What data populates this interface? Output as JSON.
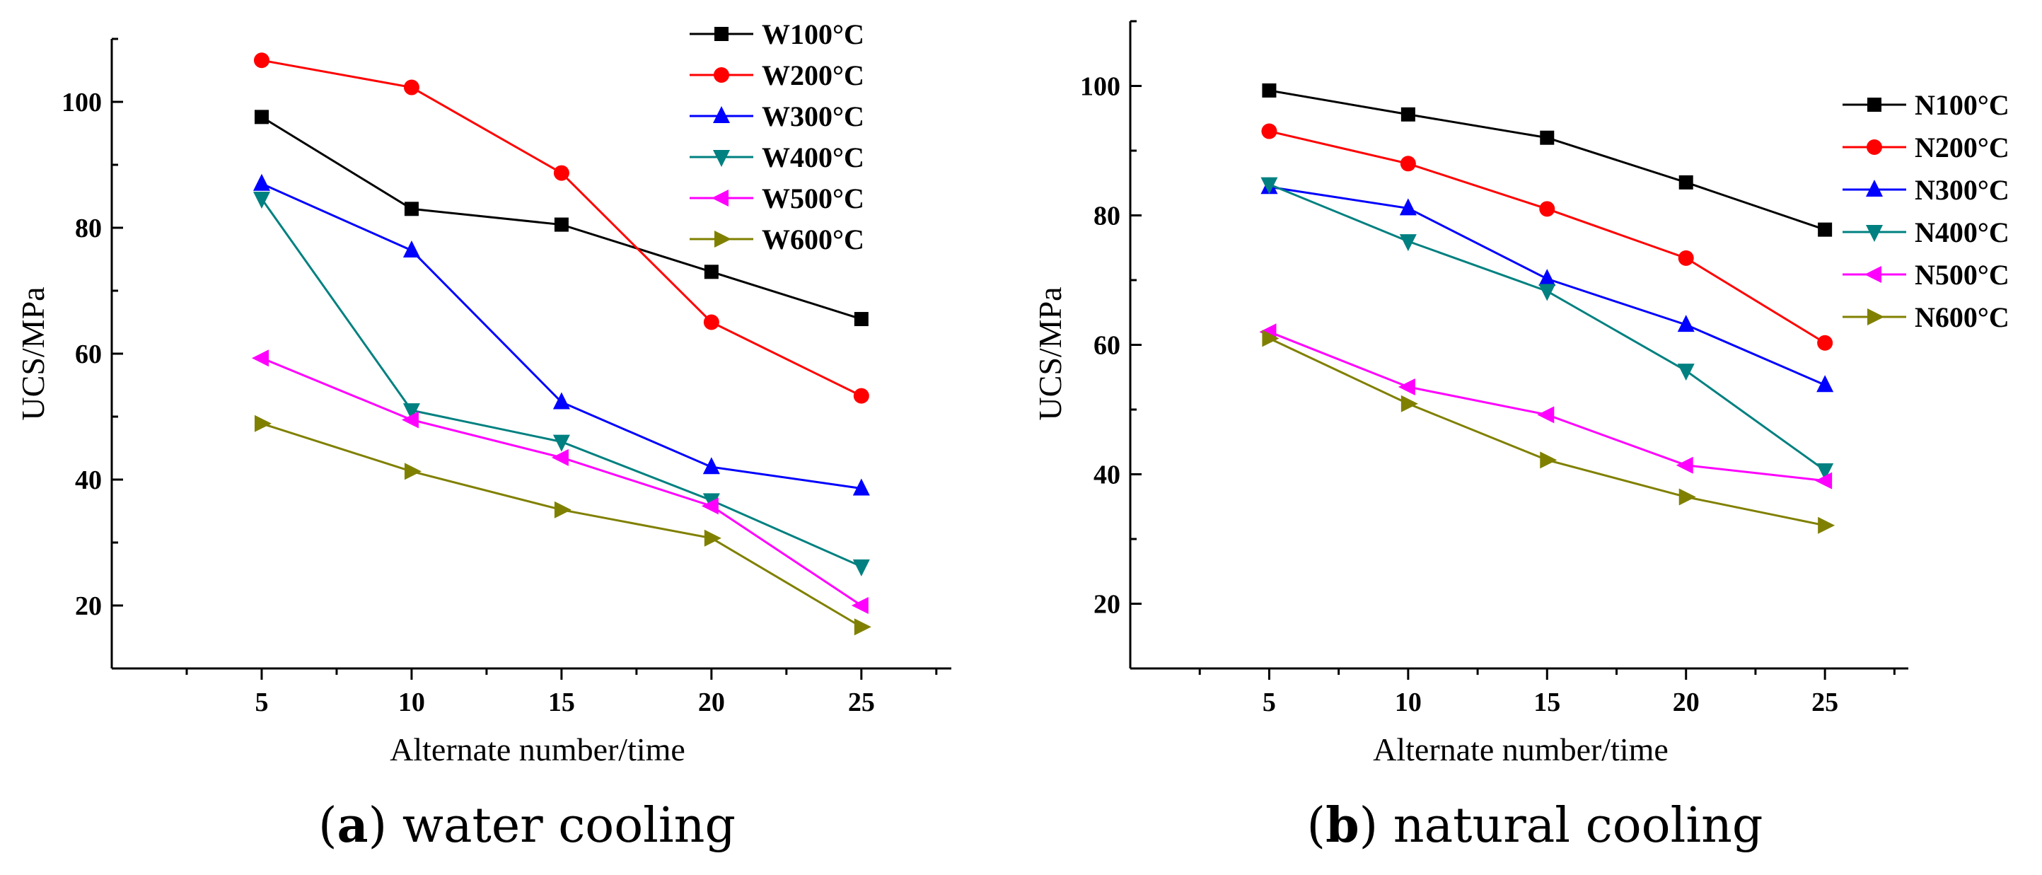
{
  "chart_data": [
    {
      "type": "line",
      "caption": {
        "letter": "a",
        "text": "water cooling"
      },
      "xlabel": "Alternate number/time",
      "ylabel": "UCS/MPa",
      "xlim": [
        0,
        28
      ],
      "ylim": [
        10,
        110
      ],
      "xticks": [
        5,
        10,
        15,
        20,
        25
      ],
      "yticks": [
        20,
        40,
        60,
        80,
        100
      ],
      "x": [
        5,
        10,
        15,
        20,
        25
      ],
      "legend_position": "top-right",
      "series": [
        {
          "name": "W100°C",
          "marker": "square",
          "color": "#000000",
          "values": [
            97.6,
            83.0,
            80.5,
            73.0,
            65.5
          ]
        },
        {
          "name": "W200°C",
          "marker": "circle",
          "color": "#ff0000",
          "values": [
            106.6,
            102.3,
            88.7,
            65.0,
            53.3
          ]
        },
        {
          "name": "W300°C",
          "marker": "triangle-up",
          "color": "#0000ff",
          "values": [
            87.0,
            76.4,
            52.3,
            42.0,
            38.6
          ]
        },
        {
          "name": "W400°C",
          "marker": "triangle-down",
          "color": "#008080",
          "values": [
            84.6,
            51.0,
            46.0,
            36.7,
            26.2
          ]
        },
        {
          "name": "W500°C",
          "marker": "triangle-left",
          "color": "#ff00ff",
          "values": [
            59.3,
            49.5,
            43.5,
            35.8,
            20.0
          ]
        },
        {
          "name": "W600°C",
          "marker": "triangle-right",
          "color": "#808000",
          "values": [
            48.9,
            41.3,
            35.2,
            30.7,
            16.6
          ]
        }
      ]
    },
    {
      "type": "line",
      "caption": {
        "letter": "b",
        "text": "natural cooling"
      },
      "xlabel": "Alternate number/time",
      "ylabel": "UCS/MPa",
      "xlim": [
        0,
        28
      ],
      "ylim": [
        10,
        110
      ],
      "xticks": [
        5,
        10,
        15,
        20,
        25
      ],
      "yticks": [
        20,
        40,
        60,
        80,
        100
      ],
      "x": [
        5,
        10,
        15,
        20,
        25
      ],
      "legend_position": "top-right",
      "series": [
        {
          "name": "N100°C",
          "marker": "square",
          "color": "#000000",
          "values": [
            99.3,
            95.6,
            92.0,
            85.1,
            77.8
          ]
        },
        {
          "name": "N200°C",
          "marker": "circle",
          "color": "#ff0000",
          "values": [
            93.0,
            88.0,
            81.0,
            73.4,
            60.3
          ]
        },
        {
          "name": "N300°C",
          "marker": "triangle-up",
          "color": "#0000ff",
          "values": [
            84.4,
            81.1,
            70.2,
            63.1,
            53.8
          ]
        },
        {
          "name": "N400°C",
          "marker": "triangle-down",
          "color": "#008080",
          "values": [
            84.8,
            76.0,
            68.3,
            56.0,
            40.6
          ]
        },
        {
          "name": "N500°C",
          "marker": "triangle-left",
          "color": "#ff00ff",
          "values": [
            62.0,
            53.5,
            49.2,
            41.4,
            39.0
          ]
        },
        {
          "name": "N600°C",
          "marker": "triangle-right",
          "color": "#808000",
          "values": [
            61.0,
            50.9,
            42.2,
            36.5,
            32.1
          ]
        }
      ]
    }
  ]
}
